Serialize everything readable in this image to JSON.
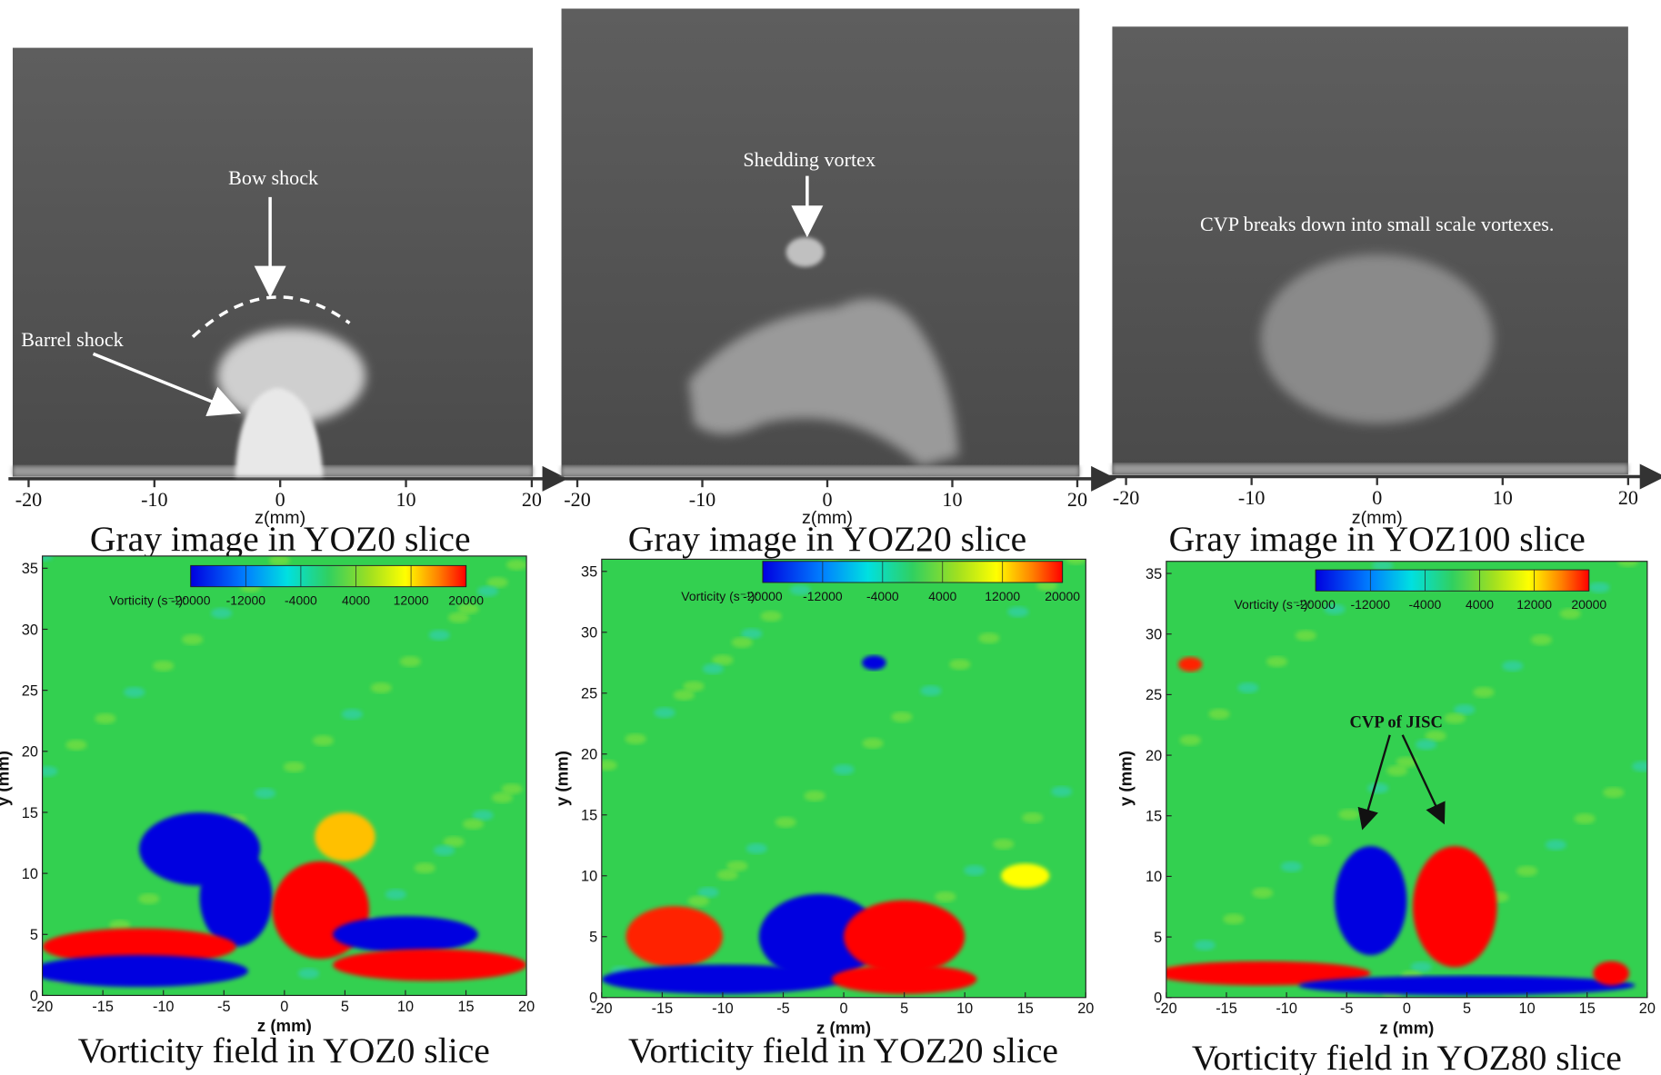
{
  "gray_panels": [
    {
      "caption": "Gray image in YOZ0 slice",
      "xlabel": "z(mm)",
      "xlim": [
        -20,
        20
      ],
      "xticks": [
        -20,
        -10,
        0,
        10,
        20
      ],
      "annotations": [
        "Bow shock",
        "Barrel shock"
      ]
    },
    {
      "caption": "Gray image in YOZ20 slice",
      "xlabel": "z(mm)",
      "xlim": [
        -20,
        20
      ],
      "xticks": [
        -20,
        -10,
        0,
        10,
        20
      ],
      "annotations": [
        "Shedding vortex"
      ]
    },
    {
      "caption": "Gray image in YOZ100 slice",
      "xlabel": "z(mm)",
      "xlim": [
        -20,
        20
      ],
      "xticks": [
        -20,
        -10,
        0,
        10,
        20
      ],
      "annotations": [
        "CVP breaks down into small scale vortexes."
      ]
    }
  ],
  "vorticity_panels": [
    {
      "caption": "Vorticity field in YOZ0 slice",
      "xlabel": "z (mm)",
      "ylabel": "y (mm)",
      "xlim": [
        -20,
        20
      ],
      "ylim": [
        0,
        36
      ],
      "xticks": [
        -20,
        -15,
        -10,
        -5,
        0,
        5,
        10,
        15,
        20
      ],
      "yticks": [
        0,
        5,
        10,
        15,
        20,
        25,
        30,
        35
      ],
      "colorbar_label": "Vorticity (s⁻¹):",
      "colorbar_ticks": [
        -20000,
        -12000,
        -4000,
        4000,
        12000,
        20000
      ],
      "annotations": []
    },
    {
      "caption": "Vorticity field in YOZ20 slice",
      "xlabel": "z (mm)",
      "ylabel": "y (mm)",
      "xlim": [
        -20,
        20
      ],
      "ylim": [
        0,
        36
      ],
      "xticks": [
        -20,
        -15,
        -10,
        -5,
        0,
        5,
        10,
        15,
        20
      ],
      "yticks": [
        0,
        5,
        10,
        15,
        20,
        25,
        30,
        35
      ],
      "colorbar_label": "Vorticity (s⁻¹):",
      "colorbar_ticks": [
        -20000,
        -12000,
        -4000,
        4000,
        12000,
        20000
      ],
      "annotations": []
    },
    {
      "caption": "Vorticity field in YOZ80 slice",
      "xlabel": "z (mm)",
      "ylabel": "y (mm)",
      "xlim": [
        -20,
        20
      ],
      "ylim": [
        0,
        36
      ],
      "xticks": [
        -20,
        -15,
        -10,
        -5,
        0,
        5,
        10,
        15,
        20
      ],
      "yticks": [
        0,
        5,
        10,
        15,
        20,
        25,
        30,
        35
      ],
      "colorbar_label": "Vorticity (s⁻¹):",
      "colorbar_ticks": [
        -20000,
        -12000,
        -4000,
        4000,
        12000,
        20000
      ],
      "annotations": [
        "CVP of JISC"
      ]
    }
  ]
}
